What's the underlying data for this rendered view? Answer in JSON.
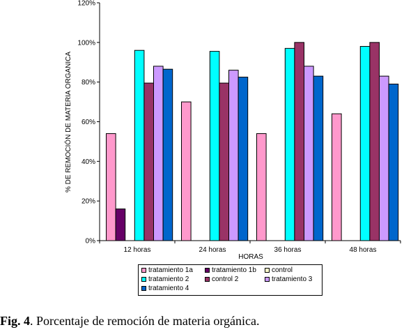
{
  "chart_data": {
    "type": "bar",
    "categories": [
      "12 horas",
      "24 horas",
      "36 horas",
      "48 horas"
    ],
    "series": [
      {
        "name": "tratamiento 1a",
        "color": "#ff99cc",
        "values": [
          54,
          70,
          54,
          64
        ]
      },
      {
        "name": "tratamiento 1b",
        "color": "#660066",
        "values": [
          16,
          null,
          null,
          null
        ]
      },
      {
        "name": "control",
        "color": "#ffffcc",
        "values": [
          null,
          null,
          null,
          null
        ]
      },
      {
        "name": "tratamiento 2",
        "color": "#00ffff",
        "values": [
          96,
          95.5,
          97,
          98
        ]
      },
      {
        "name": "control 2",
        "color": "#993366",
        "values": [
          79.5,
          79.5,
          100,
          100
        ]
      },
      {
        "name": "tratamiento 3",
        "color": "#cc99ff",
        "values": [
          88,
          86,
          88,
          83
        ]
      },
      {
        "name": "tratamiento 4",
        "color": "#0066cc",
        "values": [
          86.5,
          82.5,
          83,
          79
        ]
      }
    ],
    "ylim": [
      0,
      120
    ],
    "yticks": [
      "0%",
      "20%",
      "40%",
      "60%",
      "80%",
      "100%",
      "120%"
    ],
    "xlabel": "HORAS",
    "ylabel": "% DE REMOCIÓN DE MATERIA ORGANICA",
    "legend_position": "bottom",
    "grid": false
  },
  "caption": {
    "label": "Fig. 4",
    "text": ". Porcentaje de remoción de materia orgánica."
  },
  "legend_rows": [
    [
      "tratamiento 1a",
      "tratamiento 1b",
      "control"
    ],
    [
      "tratamiento 2",
      "control 2",
      "tratamiento 3"
    ],
    [
      "tratamiento 4"
    ]
  ]
}
